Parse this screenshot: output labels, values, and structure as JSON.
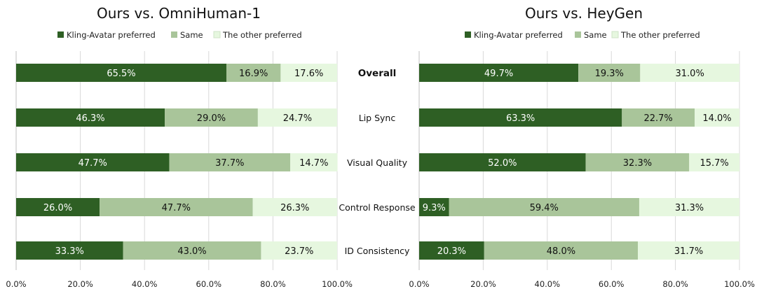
{
  "colors": {
    "kling": "#2e5f24",
    "same": "#a9c59a",
    "other": "#e6f7df",
    "label_on_dark": "#ffffff",
    "label_on_light": "#111111"
  },
  "categories": [
    "Overall",
    "Lip Sync",
    "Visual Quality",
    "Control Response",
    "ID Consistency"
  ],
  "chart_data": [
    {
      "type": "bar",
      "orientation": "horizontal",
      "stacked": "100%",
      "title": "Ours vs. OmniHuman-1",
      "categories": [
        "Overall",
        "Lip Sync",
        "Visual Quality",
        "Control Response",
        "ID Consistency"
      ],
      "series": [
        {
          "name": "Kling-Avatar preferred",
          "values": [
            65.5,
            46.3,
            47.7,
            26.0,
            33.3
          ],
          "labels": [
            "65.5%",
            "46.3%",
            "47.7%",
            "26.0%",
            "33.3%"
          ]
        },
        {
          "name": "Same",
          "values": [
            16.9,
            29.0,
            37.7,
            47.7,
            43.0
          ],
          "labels": [
            "16.9%",
            "29.0%",
            "37.7%",
            "47.7%",
            "43.0%"
          ]
        },
        {
          "name": "The other preferred",
          "values": [
            17.6,
            24.7,
            14.7,
            26.3,
            23.7
          ],
          "labels": [
            "17.6%",
            "24.7%",
            "14.7%",
            "26.3%",
            "23.7%"
          ]
        }
      ],
      "xlim": [
        0,
        100
      ],
      "xticks": [
        "0.0%",
        "20.0%",
        "40.0%",
        "60.0%",
        "80.0%",
        "100.0%"
      ],
      "legend_position": "top",
      "grid": true
    },
    {
      "type": "bar",
      "orientation": "horizontal",
      "stacked": "100%",
      "title": "Ours vs. HeyGen",
      "categories": [
        "Overall",
        "Lip Sync",
        "Visual Quality",
        "Control Response",
        "ID Consistency"
      ],
      "series": [
        {
          "name": "Kling-Avatar preferred",
          "values": [
            49.7,
            63.3,
            52.0,
            9.3,
            20.3
          ],
          "labels": [
            "49.7%",
            "63.3%",
            "52.0%",
            "9.3%",
            "20.3%"
          ]
        },
        {
          "name": "Same",
          "values": [
            19.3,
            22.7,
            32.3,
            59.4,
            48.0
          ],
          "labels": [
            "19.3%",
            "22.7%",
            "32.3%",
            "59.4%",
            "48.0%"
          ]
        },
        {
          "name": "The other preferred",
          "values": [
            31.0,
            14.0,
            15.7,
            31.3,
            31.7
          ],
          "labels": [
            "31.0%",
            "14.0%",
            "15.7%",
            "31.3%",
            "31.7%"
          ]
        }
      ],
      "xlim": [
        0,
        100
      ],
      "xticks": [
        "0.0%",
        "20.0%",
        "40.0%",
        "60.0%",
        "80.0%",
        "100.0%"
      ],
      "legend_position": "top",
      "grid": true
    }
  ]
}
